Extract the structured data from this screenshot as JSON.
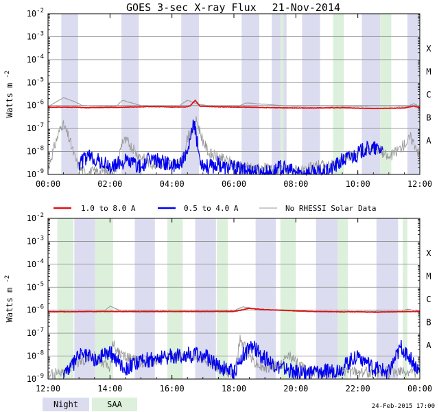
{
  "chart_data": {
    "type": "line",
    "title": "GOES 3-sec X-ray Flux",
    "date": "21-Nov-2014",
    "ylabel": "Watts m",
    "ylabel_exponent": "-2",
    "ylim": [
      1e-09,
      0.01
    ],
    "y_tick_exponents": [
      -2,
      -3,
      -4,
      -5,
      -6,
      -7,
      -8,
      -9
    ],
    "y_tick_base": "10",
    "flare_classes": [
      "X",
      "M",
      "C",
      "B",
      "A"
    ],
    "legend": [
      {
        "name": "1.0 to 8.0 A",
        "color": "#e01010"
      },
      {
        "name": "0.5 to 4.0 A",
        "color": "#0000ee"
      },
      {
        "name": "No RHESSI Solar Data",
        "color": "#999999"
      }
    ],
    "shading_legend": [
      {
        "name": "Night",
        "color": "#dcdcf0"
      },
      {
        "name": "SAA",
        "color": "#dcf0dc"
      }
    ],
    "footer": "24-Feb-2015 17:00",
    "panels": [
      {
        "name": "00:00-12:00",
        "x_range_hours": [
          0,
          12
        ],
        "x_tick_labels": [
          "00:00",
          "02:00",
          "04:00",
          "06:00",
          "08:00",
          "10:00",
          "12:00"
        ],
        "night_hours": [
          [
            0.43,
            0.97
          ],
          [
            2.37,
            2.93
          ],
          [
            4.3,
            4.87
          ],
          [
            6.25,
            6.82
          ],
          [
            8.2,
            8.78
          ],
          [
            10.13,
            10.72
          ],
          [
            12.0,
            12.0
          ]
        ],
        "night_extra": [
          [
            7.22,
            7.7
          ],
          [
            11.6,
            12.0
          ]
        ],
        "saa_hours": [
          [
            7.5,
            7.6
          ],
          [
            9.2,
            9.55
          ],
          [
            10.72,
            11.08
          ]
        ],
        "long_channel": {
          "name": "1.0 to 8.0 A",
          "times": [
            0,
            0.5,
            0.9,
            1.2,
            1.5,
            2.0,
            2.5,
            3.0,
            3.5,
            4.0,
            4.5,
            4.6,
            4.75,
            4.9,
            5.2,
            5.6,
            6.0,
            6.5,
            7.0,
            7.5,
            8.0,
            8.5,
            9.0,
            9.5,
            10.0,
            10.5,
            11.0,
            11.5,
            11.8,
            12.0
          ],
          "values": [
            8.5e-07,
            8.5e-07,
            8.5e-07,
            8e-07,
            8.2e-07,
            8.3e-07,
            8.5e-07,
            8.8e-07,
            9e-07,
            8.6e-07,
            8.8e-07,
            1e-06,
            1.7e-06,
            9.5e-07,
            9e-07,
            8.8e-07,
            8.6e-07,
            8.5e-07,
            8.2e-07,
            8e-07,
            7.8e-07,
            7.8e-07,
            8e-07,
            8e-07,
            7.7e-07,
            7.5e-07,
            7.6e-07,
            7.8e-07,
            9.5e-07,
            8e-07
          ]
        },
        "short_channel": {
          "name": "0.5 to 4.0 A",
          "times": [
            1.0,
            1.2,
            1.4,
            1.6,
            1.8,
            2.0,
            2.5,
            2.8,
            3.0,
            3.3,
            3.6,
            3.9,
            4.1,
            4.3,
            4.5,
            4.7,
            4.8,
            4.9,
            5.0,
            5.2,
            5.5,
            5.7,
            6.0,
            6.3,
            6.6,
            6.9,
            7.2,
            7.5,
            8.0,
            8.5,
            9.0,
            9.5,
            10.0,
            10.2,
            10.5,
            10.8
          ],
          "values": [
            3e-09,
            5e-09,
            6e-09,
            4e-09,
            3e-09,
            2e-09,
            4e-09,
            3e-09,
            2e-09,
            5e-09,
            4e-09,
            3e-09,
            2e-09,
            4e-09,
            6e-09,
            1.8e-07,
            3e-08,
            5e-09,
            3e-09,
            2e-09,
            3e-09,
            2e-09,
            2e-09,
            1.5e-09,
            1.5e-09,
            1.2e-09,
            1.2e-09,
            2e-09,
            1.2e-09,
            1.2e-09,
            1.2e-09,
            4e-09,
            8e-09,
            1.2e-08,
            1.3e-08,
            1.2e-08
          ]
        },
        "no_rhessi": {
          "name": "No RHESSI Solar Data",
          "times": [
            0,
            0.3,
            0.45,
            0.55,
            0.7,
            0.85,
            1.0,
            1.2,
            2.2,
            2.4,
            2.6,
            2.8,
            3.0,
            3.3,
            4.3,
            4.5,
            4.7,
            4.8,
            4.9,
            5.0,
            5.2,
            5.6,
            6.0,
            6.3,
            8.2,
            8.5,
            8.8,
            9.0,
            10.2,
            10.4,
            10.7,
            11.0,
            11.5,
            11.7,
            11.9,
            12.0
          ],
          "values": [
            2e-09,
            4e-08,
            1.6e-07,
            1e-07,
            3e-08,
            6e-09,
            2e-09,
            1.2e-09,
            1.5e-09,
            3e-08,
            2.5e-08,
            1e-08,
            6e-09,
            3e-09,
            3e-09,
            4e-08,
            1.2e-07,
            2.2e-07,
            8e-08,
            3e-08,
            8e-09,
            5e-09,
            3e-09,
            2e-09,
            1.5e-09,
            2e-09,
            3e-09,
            2e-09,
            1.2e-08,
            1.5e-08,
            1.2e-08,
            5e-09,
            2e-08,
            4e-08,
            1.5e-08,
            5e-09
          ]
        },
        "long_gray": {
          "times": [
            0,
            0.5,
            0.9,
            1.1,
            2.2,
            2.4,
            2.7,
            3.0,
            4.2,
            4.5,
            4.8,
            5.1,
            6.1,
            6.4,
            8.0,
            8.5,
            10.0,
            10.6,
            11.6,
            11.8,
            12.0
          ],
          "values": [
            9e-07,
            2.2e-06,
            1.4e-06,
            1e-06,
            9e-07,
            1.7e-06,
            1.3e-06,
            1e-06,
            9e-07,
            1.7e-06,
            1.2e-06,
            1e-06,
            9e-07,
            1.3e-06,
            9e-07,
            1e-06,
            9e-07,
            1e-06,
            9e-07,
            1.2e-06,
            9e-07
          ]
        }
      },
      {
        "name": "12:00-24:00",
        "x_range_hours": [
          12,
          24
        ],
        "x_tick_labels": [
          "12:00",
          "14:00",
          "16:00",
          "18:00",
          "20:00",
          "22:00",
          "00:00"
        ],
        "night_hours": [
          [
            12.85,
            13.52
          ],
          [
            14.8,
            15.45
          ],
          [
            16.75,
            17.42
          ],
          [
            18.7,
            19.35
          ],
          [
            20.65,
            21.35
          ],
          [
            22.6,
            23.3
          ]
        ],
        "night_extra": [],
        "saa_hours": [
          [
            12.3,
            12.82
          ],
          [
            13.52,
            14.1
          ],
          [
            15.85,
            16.35
          ],
          [
            17.45,
            17.8
          ],
          [
            19.5,
            20.0
          ],
          [
            21.35,
            21.68
          ],
          [
            23.45,
            23.6
          ]
        ],
        "long_channel": {
          "name": "1.0 to 8.0 A",
          "times": [
            12,
            13,
            14,
            15,
            16,
            17,
            18,
            18.5,
            19,
            19.5,
            20,
            20.5,
            21,
            21.5,
            22,
            22.5,
            23,
            23.5,
            24
          ],
          "values": [
            8.5e-07,
            8.6e-07,
            8.8e-07,
            8.6e-07,
            8.8e-07,
            8.7e-07,
            8.8e-07,
            1.2e-06,
            1.05e-06,
            1e-06,
            9.5e-07,
            8.8e-07,
            8.6e-07,
            8.4e-07,
            8.5e-07,
            8.2e-07,
            8.4e-07,
            8.6e-07,
            8.8e-07
          ]
        },
        "short_channel": {
          "name": "0.5 to 4.0 A",
          "times": [
            12.5,
            12.8,
            13.0,
            13.3,
            13.6,
            13.8,
            14.0,
            14.5,
            15.0,
            15.5,
            16.0,
            16.5,
            17.0,
            17.5,
            18.0,
            18.3,
            18.6,
            19.0,
            19.5,
            20.0,
            20.5,
            21.0,
            21.5,
            22.0,
            22.5,
            23.0,
            23.4,
            23.7,
            24.0
          ],
          "values": [
            2e-09,
            4e-09,
            1.2e-08,
            1e-08,
            6e-09,
            1.5e-08,
            1.4e-08,
            3e-09,
            6e-09,
            8e-09,
            1e-08,
            1.2e-08,
            1.1e-08,
            4e-09,
            2e-09,
            1.2e-08,
            2.5e-08,
            8e-09,
            3e-09,
            2e-09,
            2e-09,
            2e-09,
            3e-09,
            1.2e-08,
            3e-09,
            2e-09,
            2.5e-08,
            8e-09,
            2e-09
          ]
        },
        "no_rhessi": {
          "times": [
            12,
            12.5,
            13.0,
            13.5,
            14.0,
            14.1,
            14.3,
            15.0,
            15.5,
            16.0,
            16.5,
            17.0,
            17.5,
            18.0,
            18.2,
            18.4,
            18.7,
            19.0,
            19.5,
            19.8,
            20.0,
            20.5,
            21,
            21.5,
            22,
            22.5,
            23,
            23.5,
            24
          ],
          "values": [
            1.5e-09,
            2e-09,
            6e-09,
            1e-08,
            3e-09,
            4e-08,
            1.2e-08,
            5e-09,
            7e-09,
            9e-09,
            1.1e-08,
            8e-09,
            3e-09,
            1.5e-09,
            5e-08,
            2e-08,
            5e-09,
            3e-09,
            4e-09,
            1.2e-08,
            5e-09,
            2e-09,
            2e-09,
            2e-09,
            2e-09,
            2e-09,
            2e-09,
            2e-09,
            2e-09
          ]
        },
        "long_gray": {
          "times": [
            12,
            13.8,
            14.0,
            14.3,
            16,
            18.0,
            18.3,
            18.7,
            20,
            23.4,
            23.6,
            24
          ],
          "values": [
            9e-07,
            9e-07,
            1.5e-06,
            1e-06,
            9e-07,
            9.5e-07,
            1.4e-06,
            1.1e-06,
            9e-07,
            9e-07,
            1.1e-06,
            9e-07
          ]
        }
      }
    ]
  }
}
